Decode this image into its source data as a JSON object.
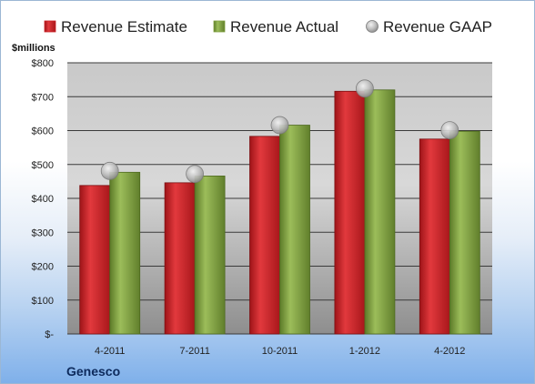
{
  "chart_data": {
    "type": "bar",
    "ylabel": "$millions",
    "company": "Genesco",
    "categories": [
      "4-2011",
      "7-2011",
      "10-2011",
      "1-2012",
      "4-2012"
    ],
    "series": [
      {
        "name": "Revenue Estimate",
        "kind": "bar",
        "color": "#cc1f24",
        "values": [
          438,
          446,
          583,
          716,
          575
        ]
      },
      {
        "name": "Revenue Actual",
        "kind": "bar",
        "color": "#7fa03e",
        "values": [
          477,
          466,
          616,
          720,
          598
        ]
      },
      {
        "name": "Revenue GAAP",
        "kind": "marker",
        "color": "#b8b8b8",
        "values": [
          481,
          472,
          616,
          724,
          601
        ]
      }
    ],
    "ylim": [
      0,
      800
    ],
    "yticks": [
      0,
      100,
      200,
      300,
      400,
      500,
      600,
      700,
      800
    ],
    "ytick_labels": [
      "$-",
      "$100",
      "$200",
      "$300",
      "$400",
      "$500",
      "$600",
      "$700",
      "$800"
    ],
    "grid": true,
    "legend_position": "top"
  }
}
